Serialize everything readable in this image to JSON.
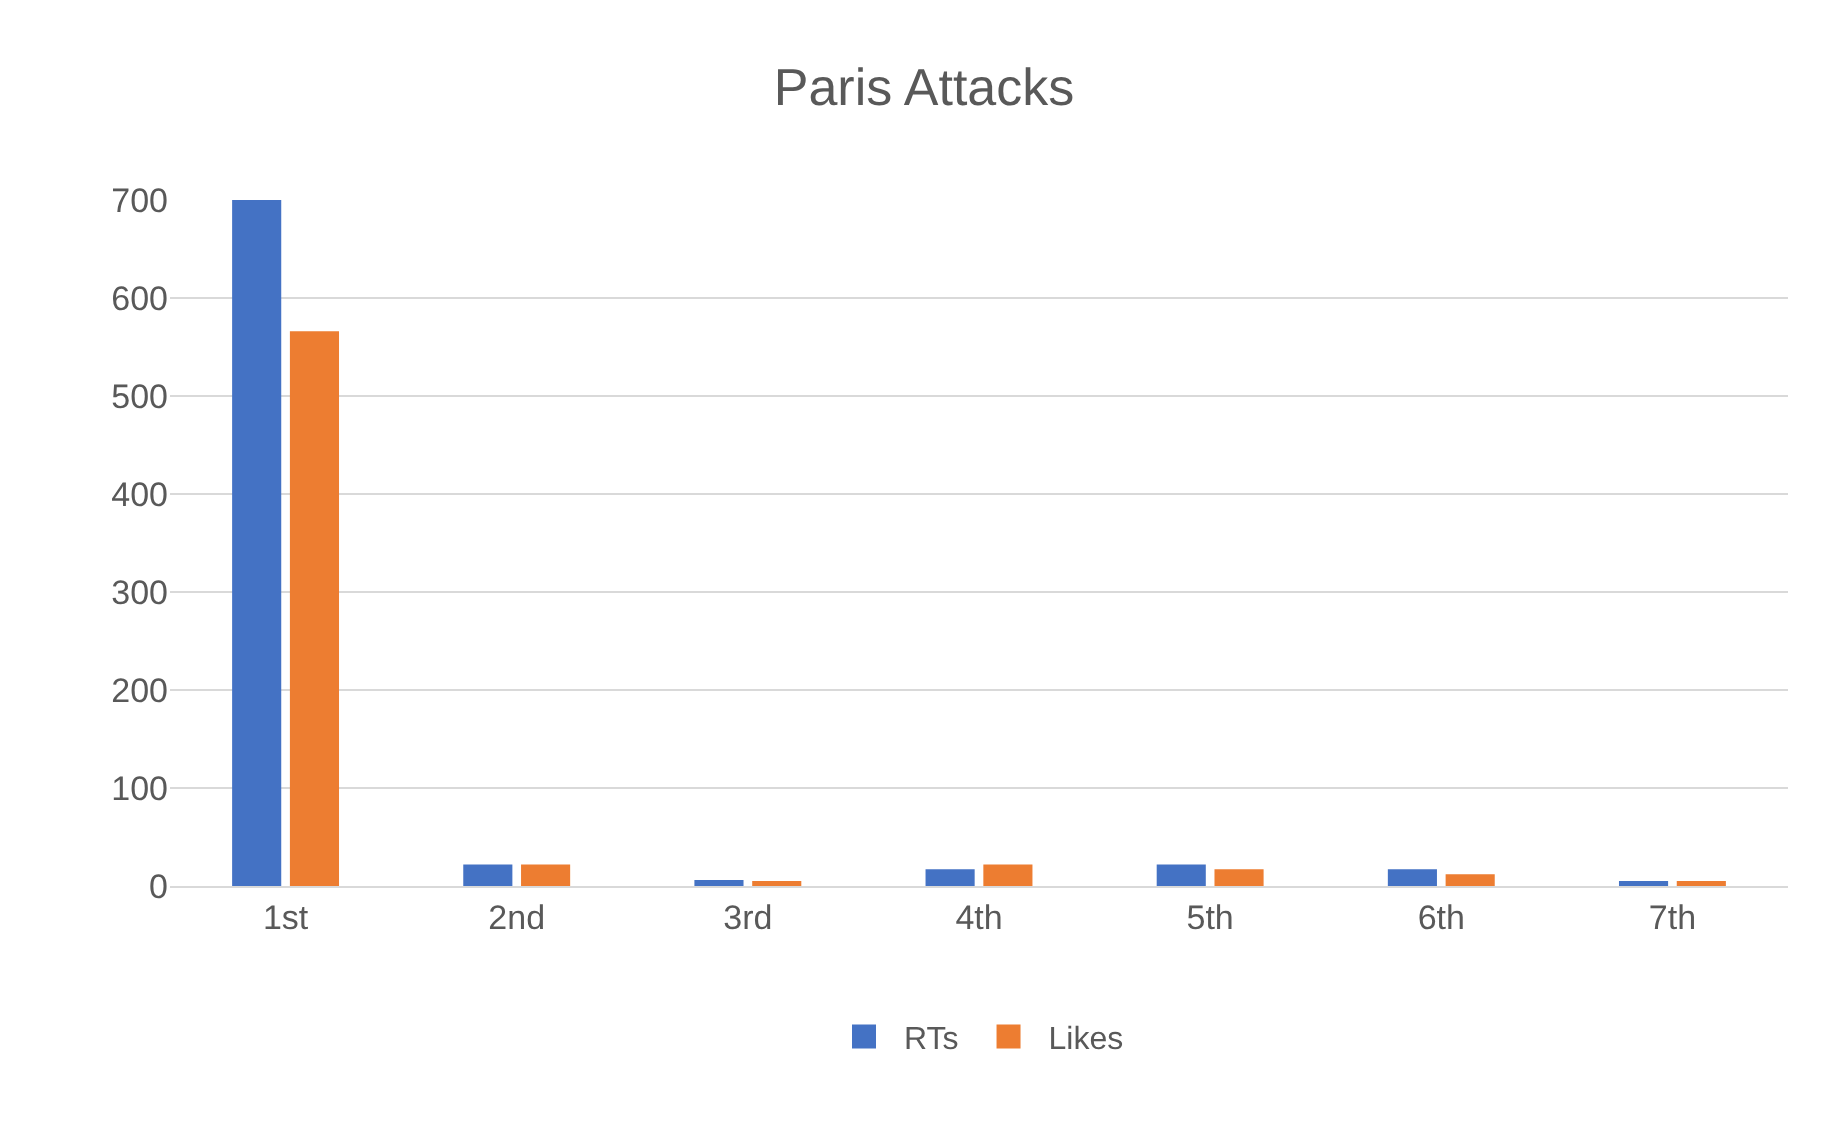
{
  "chart_data": {
    "type": "bar",
    "title": "Paris Attacks",
    "categories": [
      "1st",
      "2nd",
      "3rd",
      "4th",
      "5th",
      "6th",
      "7th"
    ],
    "series": [
      {
        "name": "RTs",
        "color": "#4472c4",
        "values": [
          700,
          22,
          6,
          17,
          22,
          17,
          5
        ]
      },
      {
        "name": "Likes",
        "color": "#ed7d31",
        "values": [
          566,
          22,
          5,
          22,
          17,
          12,
          5
        ]
      }
    ],
    "ylim": [
      0,
      700
    ],
    "yticks": [
      0,
      100,
      200,
      300,
      400,
      500,
      600,
      700
    ],
    "grid": "y",
    "legend": "bottom"
  }
}
